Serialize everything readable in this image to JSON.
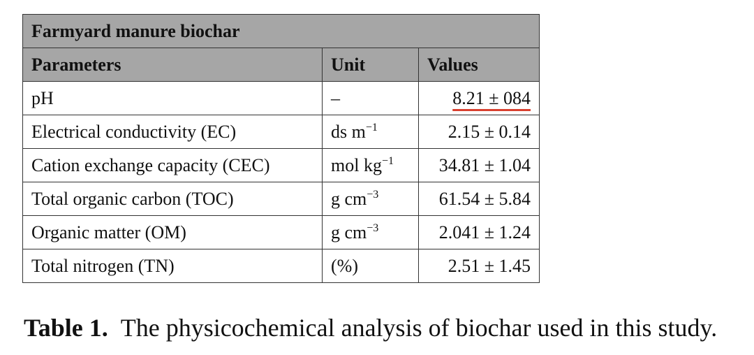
{
  "table": {
    "title": "Farmyard manure biochar",
    "header": [
      "Parameters",
      "Unit",
      "Values"
    ],
    "rows": [
      [
        "pH",
        {
          "base": "–"
        },
        "8.21 ± 084"
      ],
      [
        "Electrical conductivity (EC)",
        {
          "base": "ds m",
          "sup": "−1"
        },
        "2.15 ± 0.14"
      ],
      [
        "Cation exchange capacity (CEC)",
        {
          "base": "mol kg",
          "sup": "−1"
        },
        "34.81 ± 1.04"
      ],
      [
        "Total organic carbon (TOC)",
        {
          "base": "g cm",
          "sup": "−3"
        },
        "61.54 ± 5.84"
      ],
      [
        "Organic matter (OM)",
        {
          "base": "g cm",
          "sup": "−3"
        },
        "2.041 ± 1.24"
      ],
      [
        "Total nitrogen (TN)",
        {
          "base": "(%)"
        },
        "2.51 ± 1.45"
      ]
    ]
  },
  "caption": {
    "label": "Table 1.",
    "text": "The physicochemical analysis of biochar used in this study."
  }
}
